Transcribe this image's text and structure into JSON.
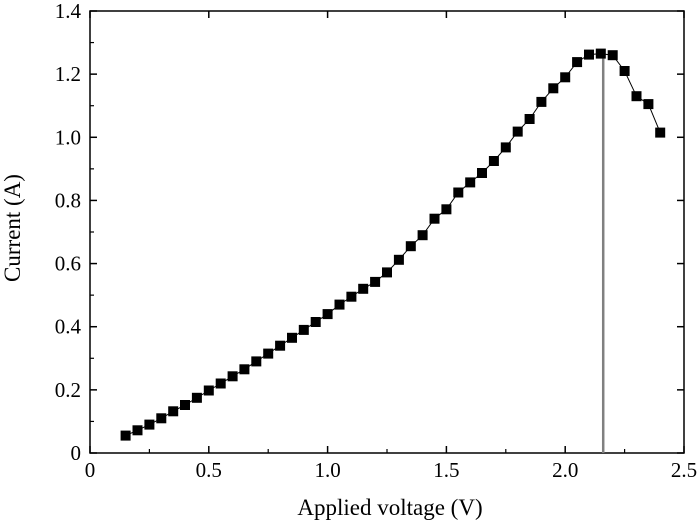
{
  "chart_data": {
    "type": "scatter",
    "xlabel": "Applied voltage (V)",
    "ylabel": "Current (A)",
    "xlim": [
      0,
      2.5
    ],
    "ylim": [
      0,
      1.4
    ],
    "x_ticks": [
      0,
      0.5,
      1.0,
      1.5,
      2.0,
      2.5
    ],
    "x_tick_labels": [
      "0",
      "0.5",
      "1.0",
      "1.5",
      "2.0",
      "2.5"
    ],
    "y_ticks": [
      0,
      0.2,
      0.4,
      0.6,
      0.8,
      1.0,
      1.2,
      1.4
    ],
    "y_tick_labels": [
      "0",
      "0.2",
      "0.4",
      "0.6",
      "0.8",
      "1.0",
      "1.2",
      "1.4"
    ],
    "grid": false,
    "marker": "square",
    "marker_color": "#000000",
    "line_color": "#000000",
    "vline_color": "#808080",
    "vline_x": 2.16,
    "series": [
      {
        "x": [
          0.15,
          0.2,
          0.25,
          0.3,
          0.35,
          0.4,
          0.45,
          0.5,
          0.55,
          0.6,
          0.65,
          0.7,
          0.75,
          0.8,
          0.85,
          0.9,
          0.95,
          1.0,
          1.05,
          1.1,
          1.15,
          1.2,
          1.25,
          1.3,
          1.35,
          1.4,
          1.45,
          1.5,
          1.55,
          1.6,
          1.65,
          1.7,
          1.75,
          1.8,
          1.85,
          1.9,
          1.95,
          2.0,
          2.05,
          2.1,
          2.15,
          2.2,
          2.25,
          2.3,
          2.35,
          2.4
        ],
        "y": [
          0.055,
          0.072,
          0.09,
          0.11,
          0.132,
          0.152,
          0.175,
          0.198,
          0.22,
          0.243,
          0.265,
          0.29,
          0.315,
          0.34,
          0.365,
          0.39,
          0.415,
          0.44,
          0.47,
          0.495,
          0.52,
          0.542,
          0.572,
          0.612,
          0.655,
          0.69,
          0.742,
          0.772,
          0.825,
          0.857,
          0.887,
          0.925,
          0.968,
          1.018,
          1.058,
          1.112,
          1.155,
          1.19,
          1.238,
          1.262,
          1.265,
          1.26,
          1.21,
          1.13,
          1.105,
          1.015
        ]
      }
    ]
  }
}
